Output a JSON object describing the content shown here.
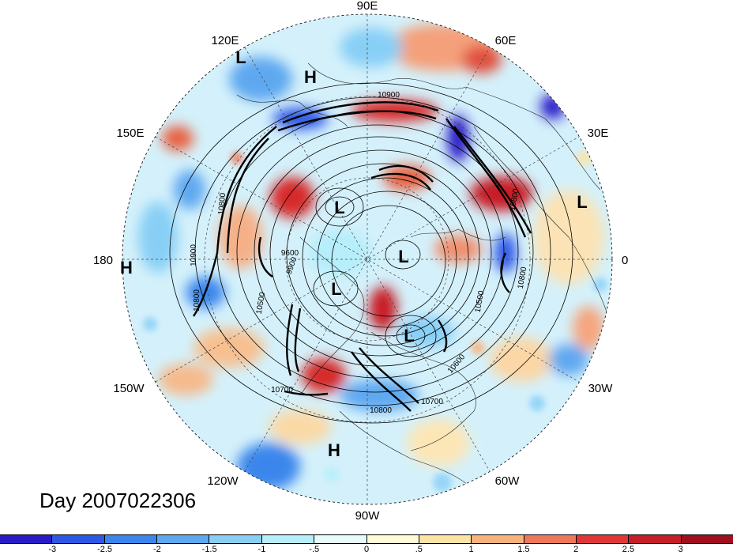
{
  "day_label": "Day 2007022306",
  "longitude_labels": [
    "90E",
    "60E",
    "30E",
    "0",
    "30W",
    "60W",
    "90W",
    "120W",
    "150W",
    "180",
    "150E",
    "120E"
  ],
  "pressure_systems": [
    {
      "label": "L"
    },
    {
      "label": "H"
    },
    {
      "label": "L"
    },
    {
      "label": "L"
    },
    {
      "label": "L"
    },
    {
      "label": "L"
    },
    {
      "label": "L"
    },
    {
      "label": "H"
    },
    {
      "label": "H"
    }
  ],
  "contour_labels": [
    "10900",
    "10800",
    "10800",
    "10700",
    "10600",
    "10500",
    "10800",
    "10900",
    "10800",
    "10500",
    "9900",
    "9600",
    "10700",
    "10800"
  ],
  "colorbar": {
    "tick_labels": [
      "-3",
      "-2.5",
      "-2",
      "-1.5",
      "-1",
      "-.5",
      "0",
      ".5",
      "1",
      "1.5",
      "2",
      "2.5",
      "3"
    ],
    "colors": [
      "#2a1ac8",
      "#2d58e6",
      "#3a86ec",
      "#5ea8f0",
      "#88cff6",
      "#b6eefb",
      "#e6fbfd",
      "#fffbd6",
      "#fde3a4",
      "#f8b27a",
      "#f0785a",
      "#e03636",
      "#c81e28",
      "#a00f1e"
    ]
  }
}
